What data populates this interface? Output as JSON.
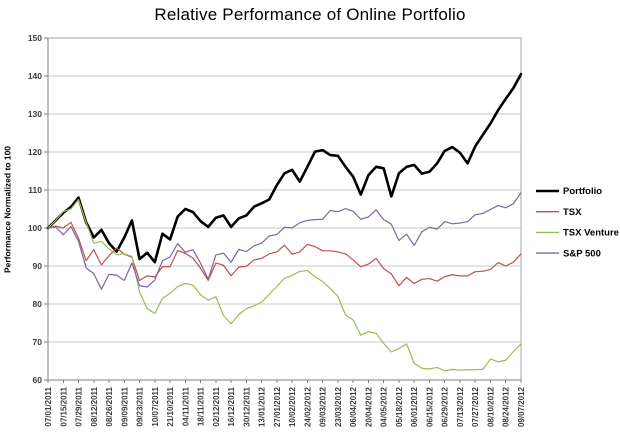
{
  "chart_data": {
    "type": "line",
    "title": "Relative Performance of Online Portfolio",
    "ylabel": "Performance Normalized to 100",
    "xlabel": "",
    "ylim": [
      60,
      150
    ],
    "ytick_step": 10,
    "grid": "horizontal",
    "legend_position": "right",
    "x_label_rotation_deg": -90,
    "x_labels_every_n_points": 2,
    "x_labels": [
      "07/01/2011",
      "07/15/2011",
      "07/29/2011",
      "08/12/2011",
      "08/26/2011",
      "09/09/2011",
      "09/23/2011",
      "10/07/2011",
      "21/10/2011",
      "04/11/2011",
      "18/11/2011",
      "02/12/2011",
      "16/12/2011",
      "30/12/2011",
      "13/01/2012",
      "27/01/2012",
      "10/02/2012",
      "24/02/2012",
      "09/03/2012",
      "23/03/2012",
      "06/04/2012",
      "20/04/2012",
      "04/05/2012",
      "05/18/2012",
      "06/01/2012",
      "06/15/2012",
      "06/29/2012",
      "07/13/2012",
      "07/27/2012",
      "08/10/2012",
      "08/24/2012",
      "09/07/2012"
    ],
    "series": [
      {
        "name": "Portfolio",
        "color": "#000000",
        "stroke_width": 2.6,
        "values": [
          100,
          102,
          104,
          105.5,
          108,
          101.5,
          97.5,
          99.5,
          96,
          93.8,
          97.5,
          102,
          91.8,
          93.5,
          91,
          98.5,
          97,
          103,
          105,
          104.2,
          101.8,
          100.3,
          102.7,
          103.3,
          100.3,
          102.5,
          103.3,
          105.6,
          106.5,
          107.5,
          111.3,
          114.4,
          115.3,
          112.2,
          116.1,
          120.1,
          120.5,
          119.2,
          119,
          116.1,
          113.5,
          108.8,
          113.9,
          116.1,
          115.7,
          108.3,
          114.4,
          116.1,
          116.6,
          114.3,
          114.8,
          117,
          120.3,
          121.3,
          119.8,
          117,
          121.5,
          124.5,
          127.5,
          131,
          134,
          136.8,
          140.5
        ]
      },
      {
        "name": "TSX",
        "color": "#c0504d",
        "stroke_width": 1.2,
        "values": [
          100,
          100.5,
          100,
          101.5,
          97.3,
          91.4,
          94.3,
          90.3,
          92.7,
          94.7,
          93.1,
          92.3,
          86.2,
          87.4,
          87.1,
          89.8,
          89.8,
          94.1,
          93.3,
          92.1,
          89.4,
          86.2,
          90.8,
          90.2,
          87.4,
          89.7,
          89.9,
          91.6,
          92,
          93.2,
          93.7,
          95.5,
          93.1,
          93.7,
          95.7,
          95.1,
          94,
          94,
          93.7,
          93.2,
          91.6,
          89.8,
          90.5,
          92,
          89.3,
          87.9,
          84.8,
          87,
          85.4,
          86.5,
          86.7,
          86,
          87.2,
          87.7,
          87.4,
          87.4,
          88.5,
          88.6,
          89.1,
          90.9,
          90,
          91,
          93.2
        ]
      },
      {
        "name": "TSX Venture",
        "color": "#9bbb59",
        "stroke_width": 1.2,
        "values": [
          100,
          102,
          104.3,
          105,
          107.5,
          101.5,
          96,
          96.5,
          94.5,
          93,
          93.2,
          92.5,
          83.2,
          78.8,
          77.5,
          81.5,
          82.8,
          84.6,
          85.4,
          85,
          82.4,
          81,
          81.9,
          77,
          74.8,
          77.2,
          78.8,
          79.5,
          80.5,
          82.5,
          84.6,
          86.8,
          87.5,
          88.6,
          88.8,
          87.2,
          85.9,
          84.1,
          82,
          77.1,
          75.8,
          71.8,
          72.7,
          72.3,
          69.6,
          67.4,
          68.3,
          69.5,
          64.4,
          63.1,
          62.9,
          63.3,
          62.4,
          62.8,
          62.6,
          62.7,
          62.7,
          62.8,
          65.5,
          64.8,
          65.2,
          67.5,
          69.5
        ]
      },
      {
        "name": "S&P 500",
        "color": "#8064a2",
        "stroke_width": 1.2,
        "values": [
          100,
          100.3,
          98.2,
          100.4,
          96.5,
          89.5,
          88,
          83.9,
          87.8,
          87.6,
          86.2,
          90.8,
          84.8,
          84.5,
          86.3,
          91.4,
          92.4,
          95.9,
          93.6,
          94.3,
          90.7,
          86.5,
          92.9,
          93.4,
          91,
          94.4,
          93.8,
          95.3,
          96,
          97.9,
          98.3,
          100.2,
          100,
          101.4,
          102,
          102.2,
          102.3,
          104.6,
          104.3,
          105.1,
          104.4,
          102.3,
          102.9,
          104.8,
          102.2,
          101,
          96.7,
          98.4,
          95.4,
          99,
          100.2,
          99.7,
          101.7,
          101.1,
          101.3,
          101.7,
          103.5,
          103.8,
          104.9,
          105.9,
          105.3,
          106.4,
          109.3
        ]
      }
    ]
  }
}
